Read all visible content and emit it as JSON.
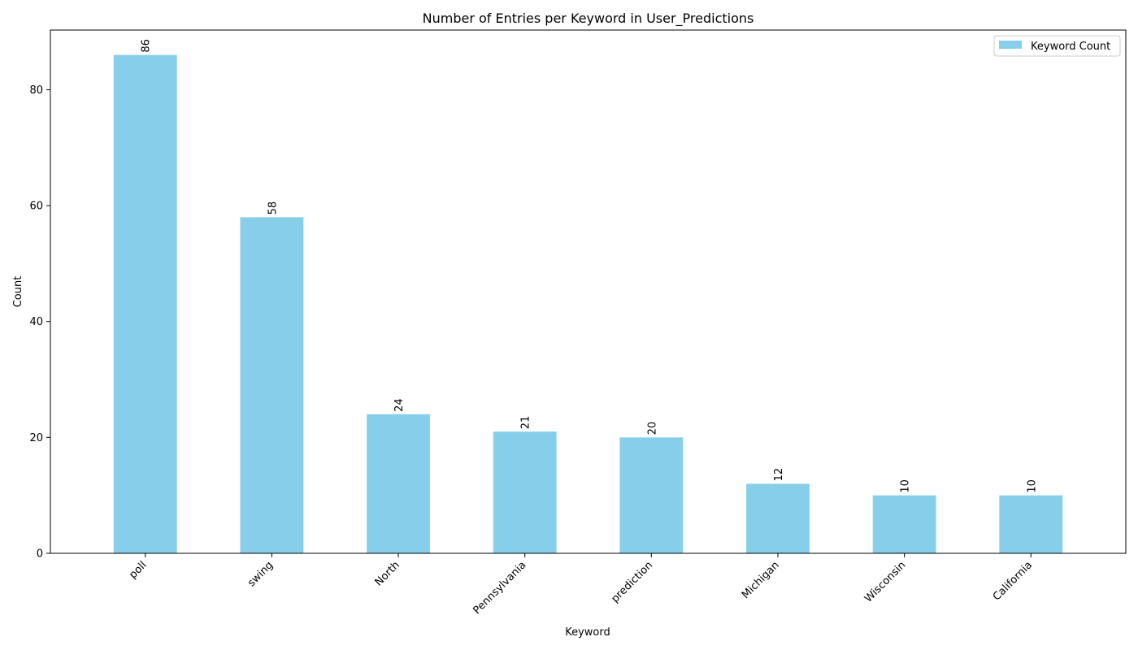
{
  "chart_data": {
    "type": "bar",
    "title": "Number of Entries per Keyword in User_Predictions",
    "xlabel": "Keyword",
    "ylabel": "Count",
    "categories": [
      "poll",
      "swing",
      "North",
      "Pennsylvania",
      "prediction",
      "Michigan",
      "Wisconsin",
      "California"
    ],
    "series": [
      {
        "name": "Keyword Count",
        "values": [
          86,
          58,
          24,
          21,
          20,
          12,
          10,
          10
        ],
        "color": "#87ceeb"
      }
    ],
    "ylim": [
      0,
      90.3
    ],
    "yticks": [
      0,
      20,
      40,
      60,
      80
    ],
    "grid": false,
    "legend_position": "top-right",
    "data_labels": true
  }
}
